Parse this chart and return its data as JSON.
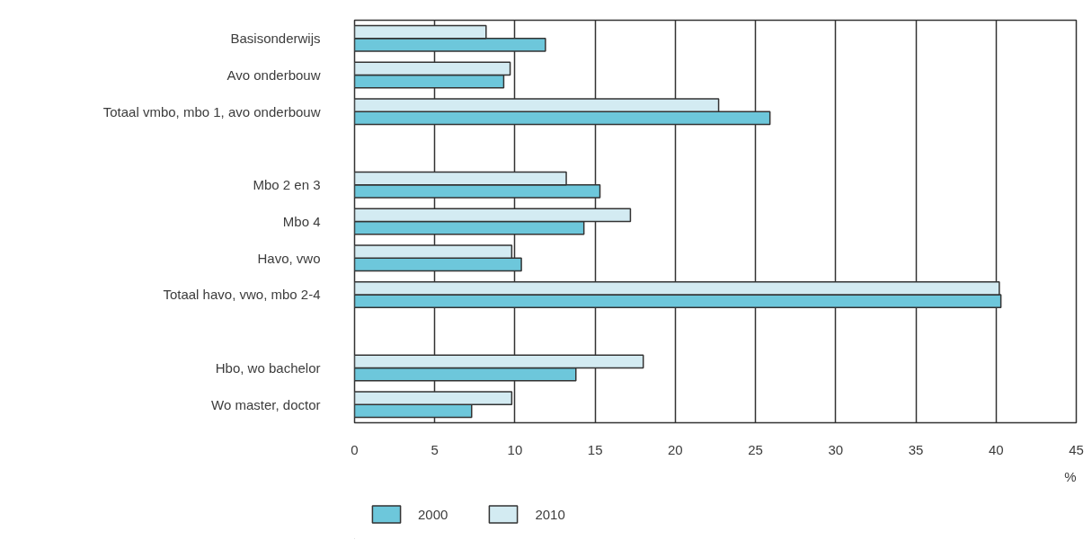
{
  "chart_data": {
    "type": "bar",
    "orientation": "horizontal",
    "categories": [
      "Basisonderwijs",
      "Avo onderbouw",
      "Totaal vmbo, mbo 1, avo onderbouw",
      null,
      "Mbo 2 en 3",
      "Mbo 4",
      "Havo, vwo",
      "Totaal havo, vwo, mbo 2-4",
      null,
      "Hbo, wo bachelor",
      "Wo master, doctor"
    ],
    "series": [
      {
        "name": "2000",
        "color": "#6dc7db",
        "values": [
          11.9,
          9.3,
          25.9,
          null,
          15.3,
          14.3,
          10.4,
          40.3,
          null,
          13.8,
          7.3
        ]
      },
      {
        "name": "2010",
        "color": "#d3ebf2",
        "values": [
          8.2,
          9.7,
          22.7,
          null,
          13.2,
          17.2,
          9.8,
          40.2,
          null,
          18.0,
          9.8
        ]
      }
    ],
    "xlabel": "%",
    "xlim": [
      0,
      45
    ],
    "xticks": [
      0,
      5,
      10,
      15,
      20,
      25,
      30,
      35,
      40,
      45
    ],
    "grid": "x",
    "legend": "bottom left"
  }
}
